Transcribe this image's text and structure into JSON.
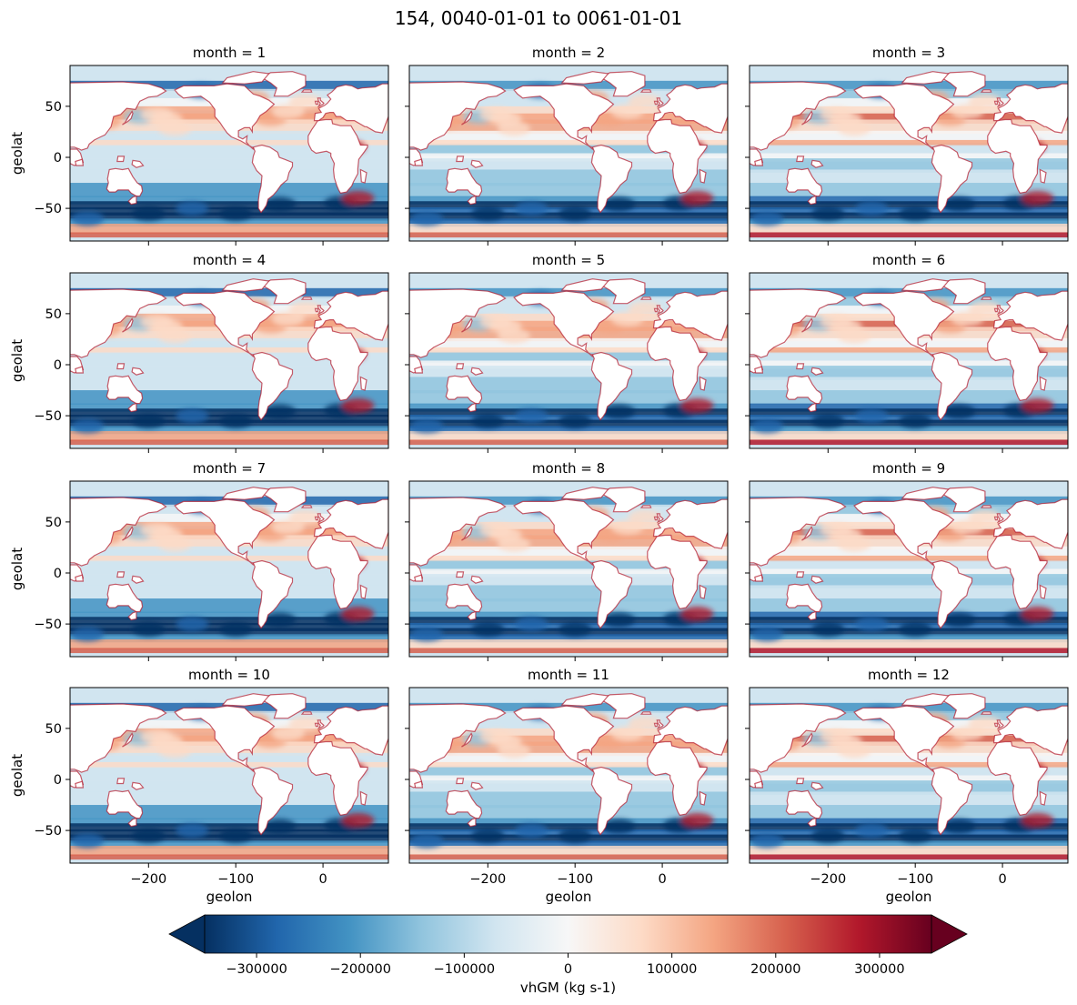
{
  "figure": {
    "title": "154, 0040-01-01 to 0061-01-01"
  },
  "chart_data": {
    "type": "heatmap",
    "title": "154, 0040-01-01 to 0061-01-01",
    "variable": "vhGM",
    "facet_by": "month",
    "panel_titles": [
      "month = 1",
      "month = 2",
      "month = 3",
      "month = 4",
      "month = 5",
      "month = 6",
      "month = 7",
      "month = 8",
      "month = 9",
      "month = 10",
      "month = 11",
      "month = 12"
    ],
    "xlabel": "geolon",
    "ylabel": "geolat",
    "xlim": [
      -290,
      75
    ],
    "ylim": [
      -82,
      90
    ],
    "xticks": [
      -200,
      -100,
      0
    ],
    "xtick_labels": [
      "−200",
      "−100",
      "0"
    ],
    "yticks": [
      50,
      0,
      -50
    ],
    "ytick_labels": [
      "50",
      "0",
      "−50"
    ],
    "colormap": "RdBu_r",
    "colorbar": {
      "label": "vhGM (kg s-1)",
      "vmin": -350000,
      "vmax": 350000,
      "extend": "both",
      "ticks": [
        -300000,
        -200000,
        -100000,
        0,
        100000,
        200000,
        300000
      ],
      "tick_labels": [
        "−300000",
        "−200000",
        "−100000",
        "0",
        "100000",
        "200000",
        "300000"
      ],
      "colors": [
        "#053061",
        "#2166ac",
        "#4393c3",
        "#92c5de",
        "#d1e5f0",
        "#f7f7f7",
        "#fddbc7",
        "#f4a582",
        "#d6604d",
        "#b2182b",
        "#67001f"
      ]
    }
  }
}
